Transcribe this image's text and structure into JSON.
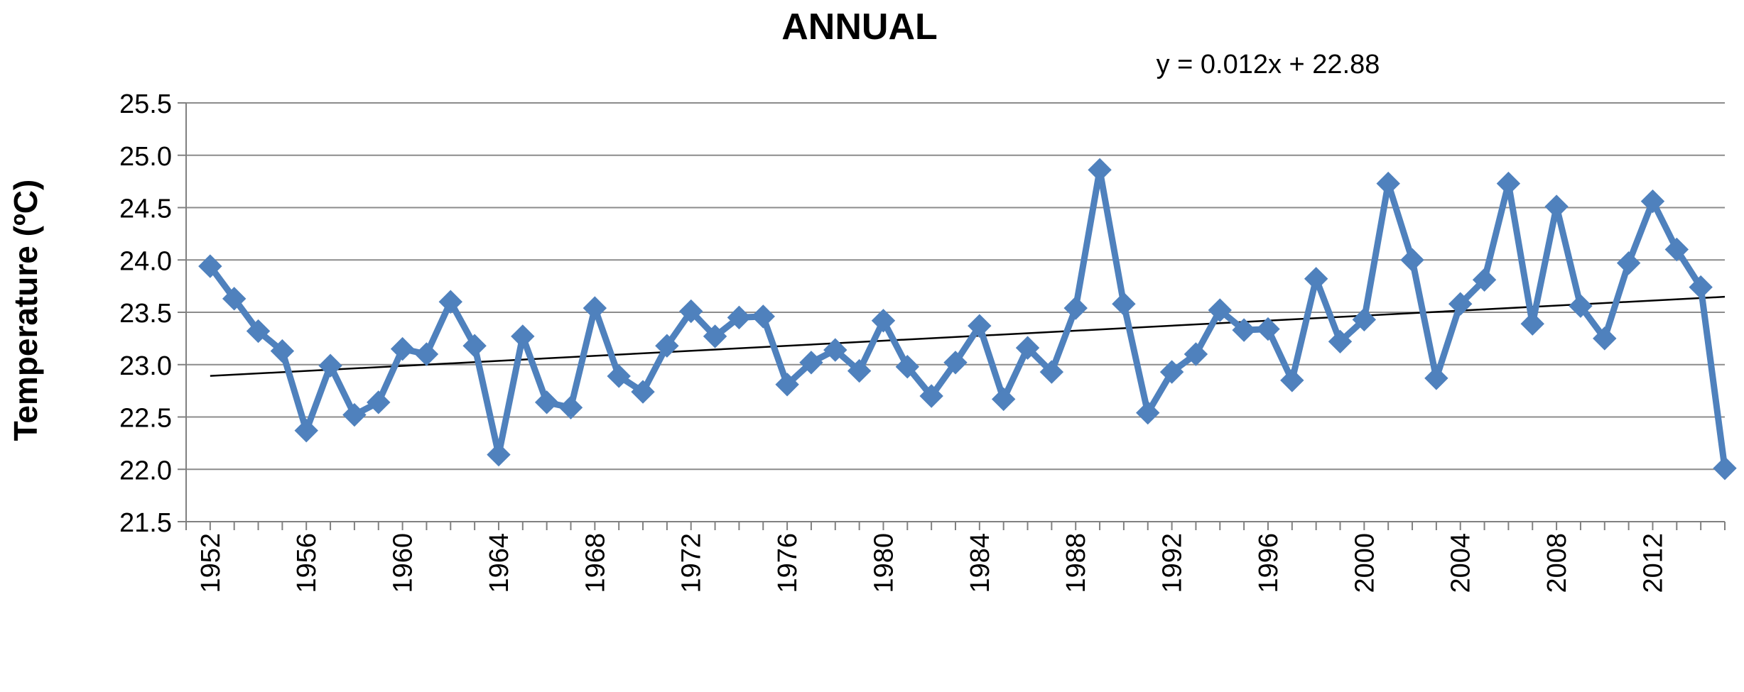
{
  "chart_data": {
    "type": "line",
    "title": "ANNUAL",
    "ylabel": "Temperature (ºC)",
    "xlabel": "",
    "ylim": [
      21.5,
      25.5
    ],
    "yticks": [
      "25.5",
      "25.0",
      "24.5",
      "24.0",
      "23.5",
      "23.0",
      "22.5",
      "22.0",
      "21.5"
    ],
    "xticks": [
      "1952",
      "1956",
      "1960",
      "1964",
      "1968",
      "1972",
      "1976",
      "1980",
      "1984",
      "1988",
      "1992",
      "1996",
      "2000",
      "2004",
      "2008",
      "2012"
    ],
    "grid": true,
    "colors": {
      "series": "#4f81bd",
      "trendline": "#000000",
      "grid": "#8c8c8c"
    },
    "trendline": {
      "label": "y = 0.012x + 22.88",
      "slope": 0.012,
      "intercept": 22.88
    },
    "series": [
      {
        "x": [
          1952,
          1953,
          1954,
          1955,
          1956,
          1957,
          1958,
          1959,
          1960,
          1961,
          1962,
          1963,
          1964,
          1965,
          1966,
          1967,
          1968,
          1969,
          1970,
          1971,
          1972,
          1973,
          1974,
          1975,
          1976,
          1977,
          1978,
          1979,
          1980,
          1981,
          1982,
          1983,
          1984,
          1985,
          1986,
          1987,
          1988,
          1989,
          1990,
          1991,
          1992,
          1993,
          1994,
          1995,
          1996,
          1997,
          1998,
          1999,
          2000,
          2001,
          2002,
          2003,
          2004,
          2005,
          2006,
          2007,
          2008,
          2009,
          2010,
          2011,
          2012,
          2013,
          2014,
          2015
        ],
        "values": [
          23.94,
          23.63,
          23.32,
          23.13,
          22.37,
          22.99,
          22.52,
          22.64,
          23.15,
          23.1,
          23.6,
          23.18,
          22.14,
          23.27,
          22.64,
          22.59,
          23.54,
          22.89,
          22.74,
          23.18,
          23.51,
          23.27,
          23.45,
          23.46,
          22.81,
          23.02,
          23.14,
          22.94,
          23.42,
          22.98,
          22.7,
          23.02,
          23.37,
          22.67,
          23.16,
          22.93,
          23.54,
          24.86,
          23.58,
          22.54,
          22.93,
          23.1,
          23.52,
          23.33,
          23.34,
          22.85,
          23.82,
          23.22,
          23.43,
          24.73,
          24.0,
          22.87,
          23.58,
          23.81,
          24.73,
          23.39,
          24.51,
          23.56,
          23.25,
          23.97,
          24.56,
          24.1,
          23.74,
          22.01
        ]
      }
    ]
  }
}
